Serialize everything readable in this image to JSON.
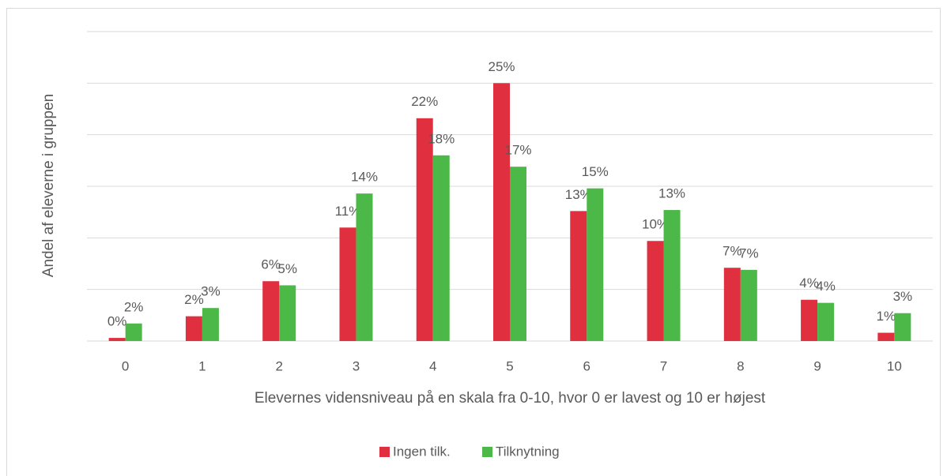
{
  "chart_data": {
    "type": "bar",
    "x_label": "Elevernes vidensniveau på en skala fra 0-10, hvor 0 er lavest og 10 er højest",
    "y_label": "Andel af eleverne i gruppen",
    "categories": [
      "0",
      "1",
      "2",
      "3",
      "4",
      "5",
      "6",
      "7",
      "8",
      "9",
      "10"
    ],
    "series": [
      {
        "name": "Ingen tilk.",
        "color": "#e0303f",
        "values": [
          0.3,
          2.4,
          5.8,
          11.0,
          21.6,
          25.0,
          12.6,
          9.7,
          7.1,
          4.0,
          0.8
        ],
        "value_labels": [
          "0%",
          "2%",
          "6%",
          "11%",
          "22%",
          "25%",
          "13%",
          "10%",
          "7%",
          "4%",
          "1%"
        ]
      },
      {
        "name": "Tilknytning",
        "color": "#4cb848",
        "values": [
          1.7,
          3.2,
          5.4,
          14.3,
          18.0,
          16.9,
          14.8,
          12.7,
          6.9,
          3.7,
          2.7
        ],
        "value_labels": [
          "2%",
          "3%",
          "5%",
          "14%",
          "18%",
          "17%",
          "15%",
          "13%",
          "7%",
          "4%",
          "3%"
        ]
      }
    ],
    "ylim": [
      0,
      30
    ],
    "yticks": [
      0,
      5,
      10,
      15,
      20,
      25,
      30
    ],
    "grid": true,
    "legend": "bottom"
  }
}
